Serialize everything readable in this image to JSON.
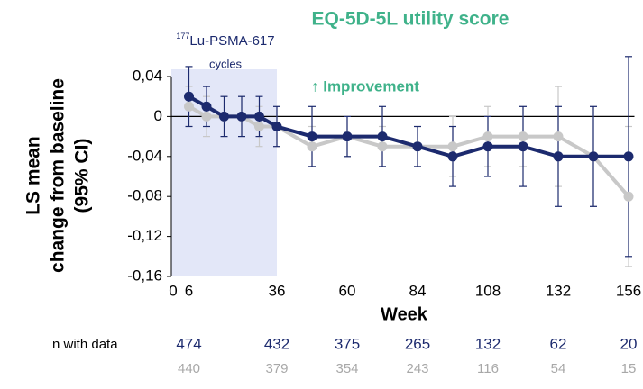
{
  "chart_data": {
    "type": "line",
    "title": "EQ-5D-5L utility score",
    "ylabel": [
      "LS mean",
      "change from baseline",
      "(95% CI)"
    ],
    "xlabel": "Week",
    "annotation": "↑ Improvement",
    "shade": {
      "range": [
        0,
        36
      ],
      "sup": "177",
      "text": "Lu-PSMA-617",
      "line2": "cycles",
      "color": "#e3e7f8"
    },
    "x": [
      6,
      12,
      18,
      24,
      30,
      36,
      48,
      60,
      72,
      84,
      96,
      108,
      120,
      132,
      144,
      156
    ],
    "series": [
      {
        "color": "#c8c8c8",
        "values": [
          0.01,
          0,
          0,
          0,
          -0.01,
          -0.01,
          -0.03,
          -0.02,
          -0.03,
          -0.03,
          -0.03,
          -0.02,
          -0.02,
          -0.02,
          -0.04,
          -0.08
        ],
        "errors": [
          0.02,
          0.02,
          0.02,
          0.02,
          0.02,
          0.02,
          0.02,
          0.02,
          0.02,
          0.02,
          0.03,
          0.03,
          0.03,
          0.05,
          0.05,
          0.07
        ]
      },
      {
        "color": "#1c2a6e",
        "values": [
          0.02,
          0.01,
          0,
          0,
          0,
          -0.01,
          -0.02,
          -0.02,
          -0.02,
          -0.03,
          -0.04,
          -0.03,
          -0.03,
          -0.04,
          -0.04,
          -0.04
        ],
        "errors": [
          0.03,
          0.02,
          0.02,
          0.02,
          0.02,
          0.02,
          0.03,
          0.02,
          0.03,
          0.02,
          0.03,
          0.03,
          0.04,
          0.05,
          0.05,
          0.1
        ]
      }
    ],
    "xlim": [
      0,
      158
    ],
    "xticks": [
      0,
      6,
      36,
      60,
      84,
      108,
      132,
      156
    ],
    "ylim": [
      -0.16,
      0.04
    ],
    "yticks": [
      {
        "value": 0.04,
        "label": "0,04"
      },
      0,
      {
        "value": -0.04,
        "label": "-0,04"
      },
      {
        "value": -0.08,
        "label": "-0,08"
      },
      {
        "value": -0.12,
        "label": "-0,12"
      },
      {
        "value": -0.16,
        "label": "-0,16"
      }
    ],
    "n_label": "n with data",
    "n_at": [
      6,
      36,
      60,
      84,
      108,
      132,
      156
    ],
    "n_rows": [
      {
        "color": "#1c2a6e",
        "values": [
          474,
          432,
          375,
          265,
          132,
          62,
          20
        ]
      },
      {
        "color": "#a8a8a8",
        "values": [
          440,
          379,
          354,
          243,
          116,
          54,
          15
        ]
      }
    ]
  }
}
